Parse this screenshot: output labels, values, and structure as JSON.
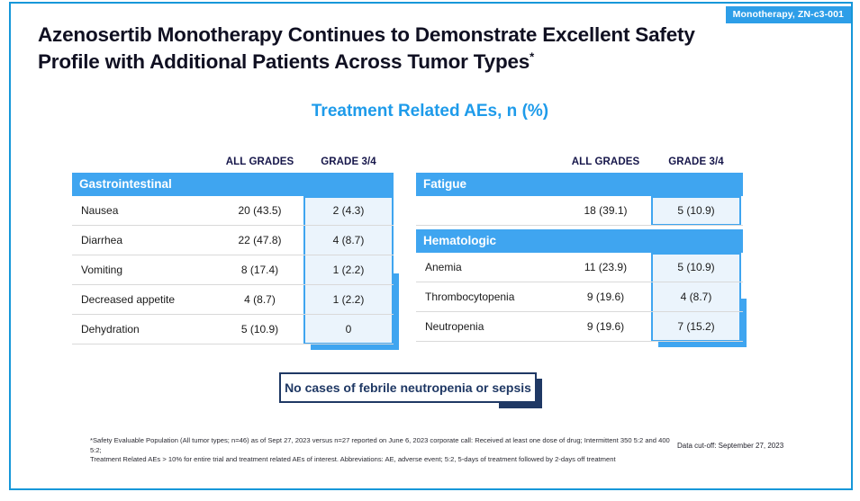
{
  "badge": {
    "label": "Monotherapy, ZN-c3-001"
  },
  "title": {
    "line1": "Azenosertib Monotherapy Continues to Demonstrate Excellent Safety",
    "line2": "Profile with Additional Patients Across Tumor Types",
    "superscript": "*"
  },
  "subtitle": "Treatment Related AEs, n (%)",
  "columns": {
    "all_grades": "ALL GRADES",
    "grade_3_4": "GRADE 3/4"
  },
  "left_table": {
    "sections": [
      {
        "header": "Gastrointestinal",
        "rows": [
          {
            "label": "Nausea",
            "all_grades": "20 (43.5)",
            "grade_3_4": "2 (4.3)"
          },
          {
            "label": "Diarrhea",
            "all_grades": "22 (47.8)",
            "grade_3_4": "4 (8.7)"
          },
          {
            "label": "Vomiting",
            "all_grades": "8 (17.4)",
            "grade_3_4": "1 (2.2)"
          },
          {
            "label": "Decreased appetite",
            "all_grades": "4 (8.7)",
            "grade_3_4": "1 (2.2)"
          },
          {
            "label": "Dehydration",
            "all_grades": "5 (10.9)",
            "grade_3_4": "0"
          }
        ]
      }
    ]
  },
  "right_table": {
    "sections": [
      {
        "header": "Fatigue",
        "rows": [
          {
            "label": "",
            "all_grades": "18 (39.1)",
            "grade_3_4": "5 (10.9)"
          }
        ]
      },
      {
        "header": "Hematologic",
        "rows": [
          {
            "label": "Anemia",
            "all_grades": "11 (23.9)",
            "grade_3_4": "5 (10.9)"
          },
          {
            "label": "Thrombocytopenia",
            "all_grades": "9 (19.6)",
            "grade_3_4": "4 (8.7)"
          },
          {
            "label": "Neutropenia",
            "all_grades": "9 (19.6)",
            "grade_3_4": "7 (15.2)"
          }
        ]
      }
    ]
  },
  "callout": "No cases of febrile neutropenia or sepsis",
  "footnote": {
    "line1": "*Safety Evaluable Population (All tumor types; n=46) as of Sept 27, 2023 versus n=27 reported on June 6, 2023 corporate call: Received at least one dose of drug; Intermittent 350 5:2 and 400 5:2;",
    "line2": "Treatment Related AEs > 10% for entire trial and treatment related AEs of interest. Abbreviations: AE, adverse event; 5:2, 5-days of treatment followed by 2-days off treatment"
  },
  "data_cutoff": "Data cut-off: September 27, 2023",
  "colors": {
    "accent_blue": "#3FA5F0",
    "badge_blue": "#2D9EE8",
    "border_blue": "#1697D9",
    "navy": "#1F3864",
    "header_navy": "#16164A",
    "highlight_bg": "#EBF4FC",
    "subtitle_blue": "#1E9BEA"
  }
}
